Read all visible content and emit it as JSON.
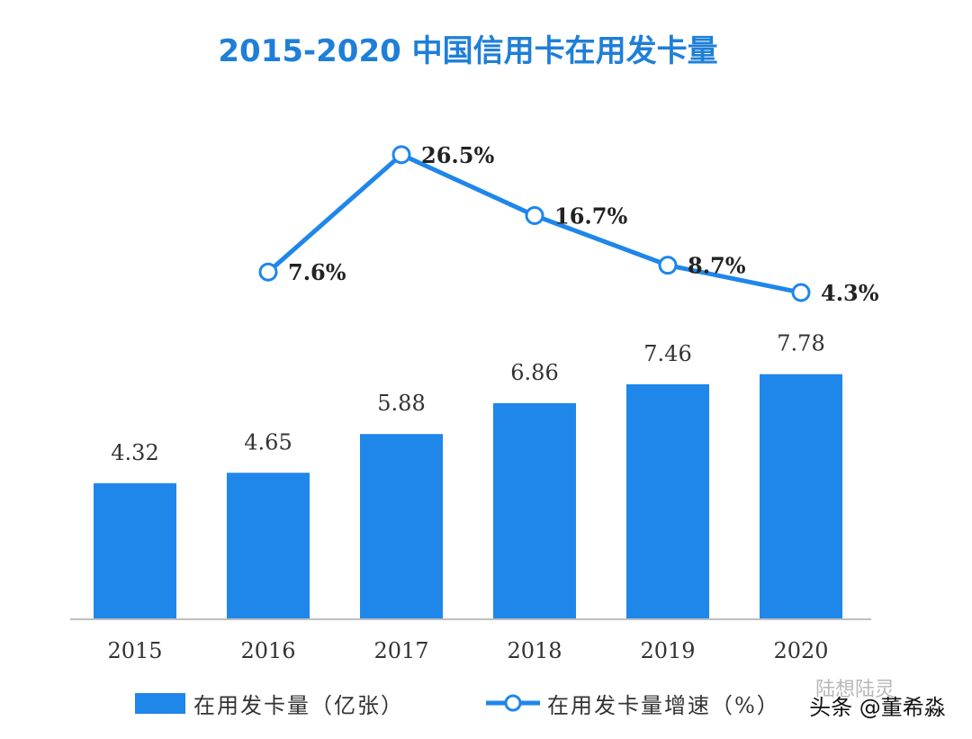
{
  "colors": {
    "bar": "#1f86ea",
    "line": "#1f86ea",
    "title": "#1f7fd8",
    "axis": "#bfbfbf"
  },
  "chart_data": {
    "type": "bar",
    "title": "2015-2020 中国信用卡在用发卡量",
    "categories": [
      "2015",
      "2016",
      "2017",
      "2018",
      "2019",
      "2020"
    ],
    "series": [
      {
        "name": "在用发卡量（亿张）",
        "type": "bar",
        "values": [
          4.32,
          4.65,
          5.88,
          6.86,
          7.46,
          7.78
        ],
        "labels": [
          "4.32",
          "4.65",
          "5.88",
          "6.86",
          "7.46",
          "7.78"
        ]
      },
      {
        "name": "在用发卡量增速（%）",
        "type": "line",
        "values": [
          null,
          7.6,
          26.5,
          16.7,
          8.7,
          4.3
        ],
        "labels": [
          "",
          "7.6%",
          "26.5%",
          "16.7%",
          "8.7%",
          "4.3%"
        ]
      }
    ],
    "legend": {
      "position": "bottom",
      "bar_label": "在用发卡量（亿张）",
      "line_label": "在用发卡量增速（%）"
    },
    "grid": false
  },
  "watermark": {
    "faint": "陆想陆灵",
    "main": "头条 @董希淼"
  }
}
